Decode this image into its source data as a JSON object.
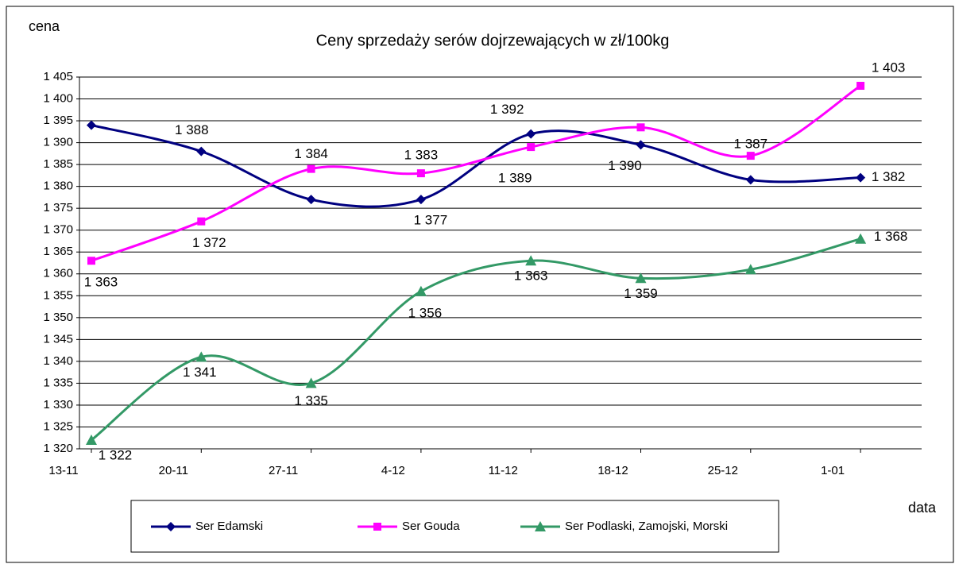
{
  "chart_data": {
    "type": "line",
    "title": "Ceny sprzedaży serów dojrzewających w zł/100kg",
    "y_label": "cena",
    "x_label": "data",
    "categories": [
      "13-11",
      "20-11",
      "27-11",
      "4-12",
      "11-12",
      "18-12",
      "25-12",
      "1-01"
    ],
    "series": [
      {
        "name": "Ser Edamski",
        "color": "#000080",
        "marker": "diamond",
        "values": [
          1394,
          1388,
          1377,
          1377,
          1392,
          1389.5,
          1381.5,
          1382
        ],
        "value_labels": [
          null,
          "1 388",
          null,
          "1 377",
          "1 392",
          "1 390",
          null,
          "1 382"
        ]
      },
      {
        "name": "Ser Gouda",
        "color": "#ff00ff",
        "marker": "square",
        "values": [
          1363,
          1372,
          1384,
          1383,
          1389,
          1393.5,
          1387,
          1403
        ],
        "value_labels": [
          "1 363",
          "1 372",
          "1 384",
          "1 383",
          "1 389",
          null,
          "1 387",
          "1 403"
        ]
      },
      {
        "name": "Ser Podlaski, Zamojski, Morski",
        "color": "#339966",
        "marker": "triangle",
        "values": [
          1322,
          1341,
          1335,
          1356,
          1363,
          1359,
          1361,
          1368
        ],
        "value_labels": [
          "1 322",
          "1 341",
          "1 335",
          "1 356",
          "1 363",
          "1 359",
          null,
          "1 368"
        ]
      }
    ],
    "ylim": [
      1320,
      1405
    ],
    "yticks": [
      {
        "value": 1320,
        "label": "1 320"
      },
      {
        "value": 1325,
        "label": "1 325"
      },
      {
        "value": 1330,
        "label": "1 330"
      },
      {
        "value": 1335,
        "label": "1 335"
      },
      {
        "value": 1340,
        "label": "1 340"
      },
      {
        "value": 1345,
        "label": "1 345"
      },
      {
        "value": 1350,
        "label": "1 350"
      },
      {
        "value": 1355,
        "label": "1 355"
      },
      {
        "value": 1360,
        "label": "1 360"
      },
      {
        "value": 1365,
        "label": "1 365"
      },
      {
        "value": 1370,
        "label": "1 370"
      },
      {
        "value": 1375,
        "label": "1 375"
      },
      {
        "value": 1380,
        "label": "1 380"
      },
      {
        "value": 1385,
        "label": "1 385"
      },
      {
        "value": 1390,
        "label": "1 390"
      },
      {
        "value": 1395,
        "label": "1 395"
      },
      {
        "value": 1400,
        "label": "1 400"
      },
      {
        "value": 1405,
        "label": "1 405"
      }
    ],
    "grid": true,
    "legend": "bottom"
  }
}
